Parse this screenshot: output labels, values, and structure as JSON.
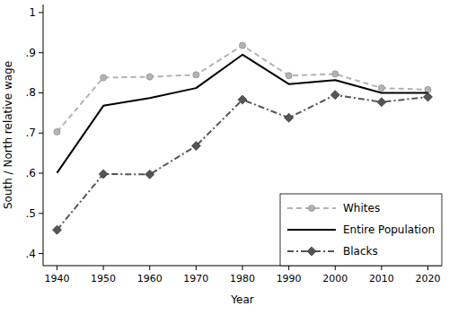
{
  "chart_data": {
    "type": "line",
    "x_label": "Year",
    "y_label": "South / North relative wage",
    "x": [
      1940,
      1950,
      1960,
      1970,
      1980,
      1990,
      2000,
      2010,
      2020
    ],
    "series": [
      {
        "name": "Whites",
        "color": "#b3b3b3",
        "marker": "circle",
        "line_style": "dashed",
        "values": [
          0.703,
          0.838,
          0.84,
          0.845,
          0.918,
          0.843,
          0.847,
          0.812,
          0.808
        ]
      },
      {
        "name": "Entire Population",
        "color": "#000000",
        "marker": "none",
        "line_style": "solid",
        "values": [
          0.601,
          0.768,
          0.787,
          0.812,
          0.895,
          0.822,
          0.832,
          0.8,
          0.8
        ]
      },
      {
        "name": "Blacks",
        "color": "#555555",
        "marker": "diamond",
        "line_style": "dashdot",
        "values": [
          0.459,
          0.598,
          0.597,
          0.668,
          0.783,
          0.738,
          0.795,
          0.777,
          0.79
        ]
      }
    ],
    "xlim": [
      1937,
      2023
    ],
    "xticks": [
      1940,
      1950,
      1960,
      1970,
      1980,
      1990,
      2000,
      2010,
      2020
    ],
    "ylim": [
      0.37,
      1.02
    ],
    "yticks": [
      {
        "value": 0.4,
        "label": ".4"
      },
      {
        "value": 0.5,
        "label": ".5"
      },
      {
        "value": 0.6,
        "label": ".6"
      },
      {
        "value": 0.7,
        "label": ".7"
      },
      {
        "value": 0.8,
        "label": ".8"
      },
      {
        "value": 0.9,
        "label": ".9"
      },
      {
        "value": 1,
        "label": "1"
      }
    ],
    "grid": false,
    "legend": "bottom-right"
  }
}
